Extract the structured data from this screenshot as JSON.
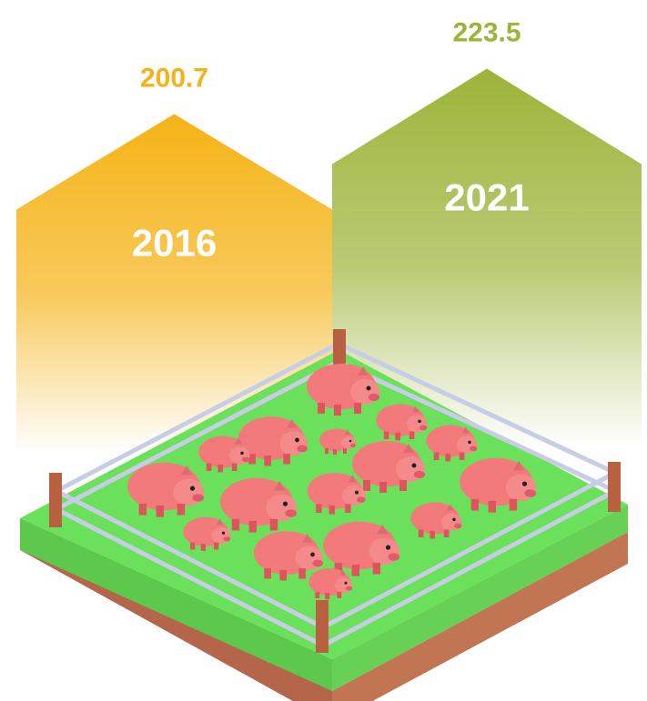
{
  "chart_data": {
    "type": "bar",
    "categories": [
      "2016",
      "2021"
    ],
    "series": [
      {
        "name": null,
        "values": [
          200.7,
          223.5
        ]
      }
    ],
    "colors": [
      "#f5b316",
      "#9db43a"
    ]
  }
}
